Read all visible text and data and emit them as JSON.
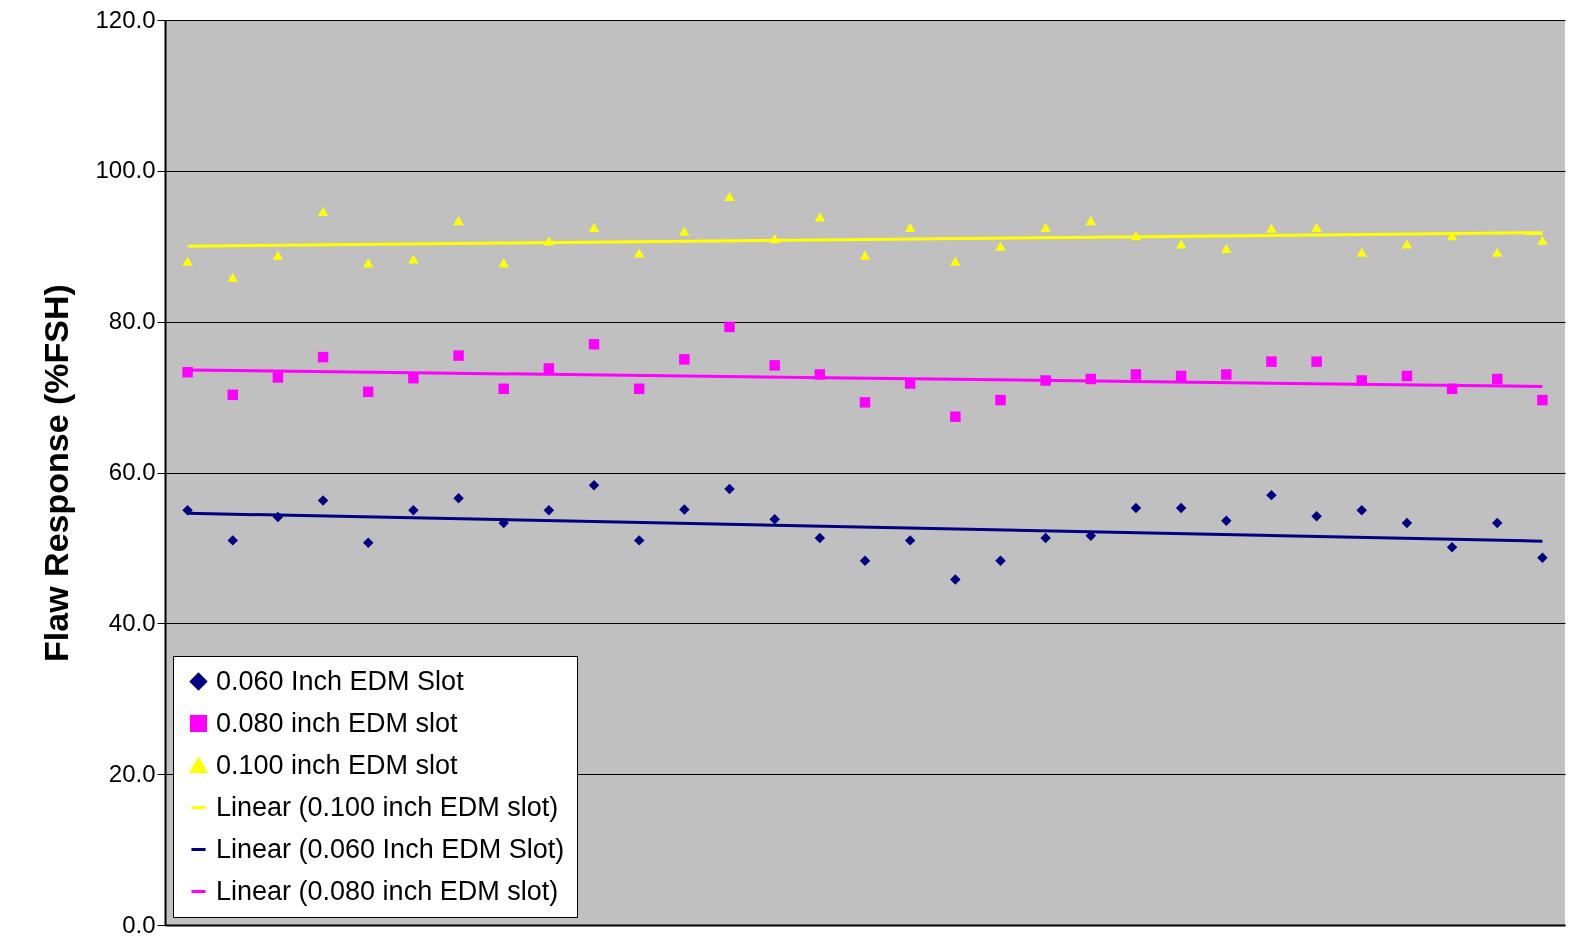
{
  "chart_data": {
    "type": "scatter",
    "ylabel": "Flaw Response (%FSH)",
    "ylim": [
      0,
      120
    ],
    "categories": [
      null,
      null,
      null,
      null,
      null,
      null,
      null,
      null,
      null,
      null,
      null,
      null,
      null,
      null,
      null,
      null,
      null,
      null,
      null,
      null,
      null,
      null,
      null,
      null,
      null,
      null,
      null,
      null,
      null,
      null,
      null
    ],
    "yticks": [
      {
        "value": 0,
        "label": "0.0"
      },
      {
        "value": 20,
        "label": "20.0"
      },
      {
        "value": 40,
        "label": "40.0"
      },
      {
        "value": 60,
        "label": "60.0"
      },
      {
        "value": 80,
        "label": "80.0"
      },
      {
        "value": 100,
        "label": "100.0"
      },
      {
        "value": 120,
        "label": "120.0"
      }
    ],
    "tick_labels": "y",
    "grid": "y",
    "legend": "bottom left",
    "series": [
      {
        "name": "0.060 Inch EDM Slot",
        "marker": "diamond",
        "color": "#000080",
        "values": [
          55.0,
          51.0,
          54.1,
          56.3,
          50.7,
          55.0,
          56.6,
          53.3,
          55.0,
          58.3,
          51.0,
          55.1,
          57.8,
          53.8,
          51.3,
          48.3,
          51.0,
          45.8,
          48.3,
          51.3,
          51.6,
          55.3,
          55.3,
          53.6,
          57.0,
          54.2,
          55.0,
          53.3,
          50.1,
          53.3,
          48.7
        ]
      },
      {
        "name": "0.080 inch EDM slot",
        "marker": "square",
        "color": "#ff00ff",
        "values": [
          73.3,
          70.3,
          72.6,
          75.3,
          70.7,
          72.5,
          75.5,
          71.1,
          73.8,
          77.0,
          71.1,
          75.0,
          79.3,
          74.2,
          73.0,
          69.3,
          71.8,
          67.4,
          69.6,
          72.2,
          72.4,
          73.0,
          72.8,
          73.0,
          74.7,
          74.7,
          72.2,
          72.8,
          71.1,
          72.4,
          69.6
        ]
      },
      {
        "name": "0.100 inch EDM slot",
        "marker": "triangle",
        "color": "#ffff00",
        "values": [
          88.0,
          85.9,
          88.8,
          94.6,
          87.8,
          88.3,
          93.4,
          87.8,
          90.7,
          92.5,
          89.1,
          92.0,
          96.6,
          91.0,
          93.9,
          88.8,
          92.5,
          88.0,
          90.0,
          92.5,
          93.4,
          91.4,
          90.3,
          89.7,
          92.4,
          92.5,
          89.2,
          90.3,
          91.4,
          89.2,
          90.8
        ]
      },
      {
        "name": "Linear (0.100 inch EDM slot)",
        "type": "line",
        "marker": "none",
        "color": "#ffff00",
        "values": [
          90.0,
          null,
          null,
          null,
          null,
          null,
          null,
          null,
          null,
          null,
          null,
          null,
          null,
          null,
          null,
          null,
          null,
          null,
          null,
          null,
          null,
          null,
          null,
          null,
          null,
          null,
          null,
          null,
          null,
          null,
          91.8
        ]
      },
      {
        "name": "Linear (0.060 Inch EDM Slot)",
        "type": "line",
        "marker": "none",
        "color": "#000080",
        "values": [
          54.6,
          null,
          null,
          null,
          null,
          null,
          null,
          null,
          null,
          null,
          null,
          null,
          null,
          null,
          null,
          null,
          null,
          null,
          null,
          null,
          null,
          null,
          null,
          null,
          null,
          null,
          null,
          null,
          null,
          null,
          50.9
        ]
      },
      {
        "name": "Linear (0.080 inch EDM slot)",
        "type": "line",
        "marker": "none",
        "color": "#ff00ff",
        "values": [
          73.6,
          null,
          null,
          null,
          null,
          null,
          null,
          null,
          null,
          null,
          null,
          null,
          null,
          null,
          null,
          null,
          null,
          null,
          null,
          null,
          null,
          null,
          null,
          null,
          null,
          null,
          null,
          null,
          null,
          null,
          71.4
        ]
      }
    ]
  }
}
